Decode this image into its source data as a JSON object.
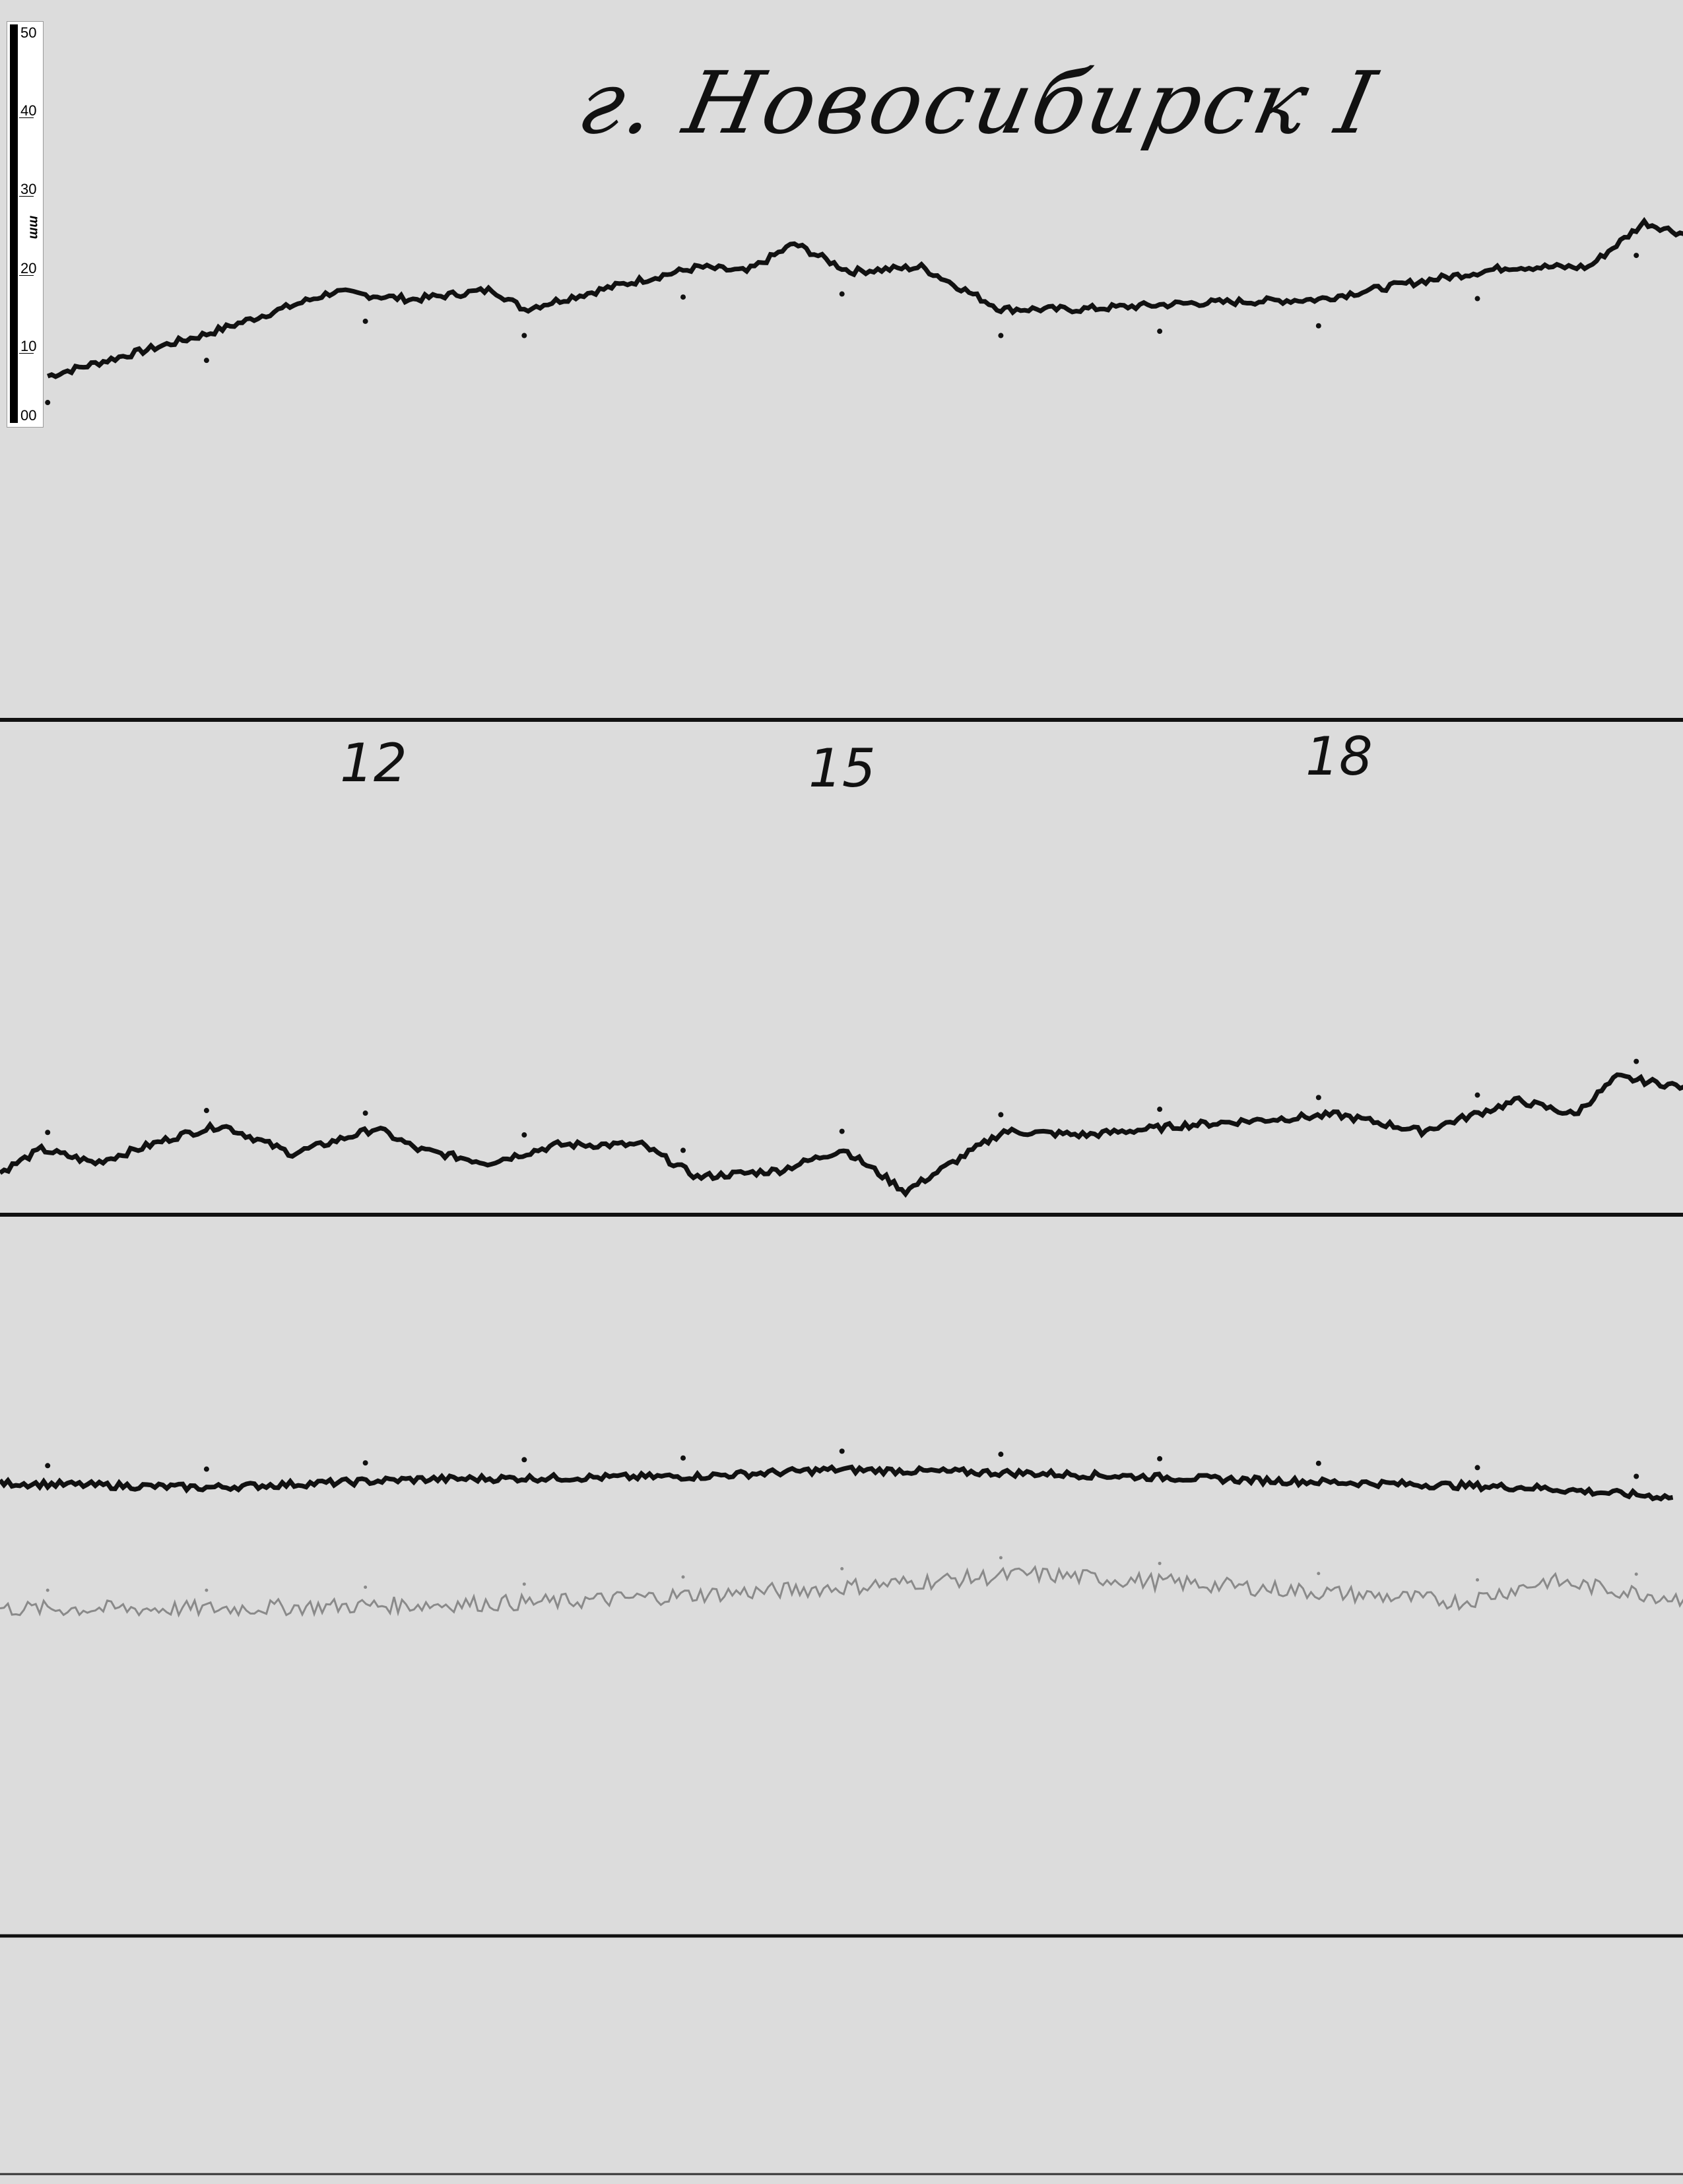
{
  "title": "г. Новосибирск I",
  "ruler": {
    "unit": "mm",
    "labels": [
      "50",
      "40",
      "30",
      "20",
      "10",
      "00"
    ]
  },
  "hour_labels": [
    "12",
    "15",
    "18"
  ],
  "colors": {
    "paper": "#dcdcdc",
    "trace": "#111111",
    "faint_trace": "#8a8a8a",
    "baseline": "#111111"
  },
  "chart_data": {
    "type": "line",
    "title": "г. Новосибирск I",
    "xlabel": "",
    "ylabel": "",
    "x_ticks": [
      12,
      15,
      18
    ],
    "xlim": [
      9.7,
      20.3
    ],
    "grid": false,
    "series": [
      {
        "baseline": 1,
        "points": [
          [
            10.0,
            45.7
          ],
          [
            11.0,
            51.3
          ],
          [
            11.8,
            56.9
          ],
          [
            12.3,
            55.9
          ],
          [
            12.8,
            57.2
          ],
          [
            13.0,
            54.6
          ],
          [
            13.6,
            57.8
          ],
          [
            14.1,
            60.2
          ],
          [
            14.4,
            59.6
          ],
          [
            14.7,
            63.3
          ],
          [
            15.05,
            59.6
          ],
          [
            15.5,
            60.2
          ],
          [
            16.0,
            54.6
          ],
          [
            16.5,
            54.6
          ],
          [
            17.2,
            55.4
          ],
          [
            18.0,
            55.9
          ],
          [
            18.5,
            57.8
          ],
          [
            19.2,
            60.2
          ],
          [
            19.7,
            60.2
          ],
          [
            20.05,
            66.1
          ],
          [
            20.3,
            64.6
          ]
        ]
      },
      {
        "baseline": 2,
        "points": [
          [
            9.7,
            5.6
          ],
          [
            9.96,
            8.7
          ],
          [
            10.3,
            6.9
          ],
          [
            10.84,
            10.6
          ],
          [
            11.1,
            11.9
          ],
          [
            11.54,
            8.1
          ],
          [
            12.07,
            11.5
          ],
          [
            12.33,
            8.7
          ],
          [
            12.77,
            6.9
          ],
          [
            13.21,
            9.3
          ],
          [
            13.74,
            9.3
          ],
          [
            14.09,
            5.0
          ],
          [
            14.61,
            5.9
          ],
          [
            15.01,
            8.7
          ],
          [
            15.4,
            3.1
          ],
          [
            16.02,
            11.1
          ],
          [
            16.54,
            10.6
          ],
          [
            17.16,
            11.9
          ],
          [
            18.12,
            13.3
          ],
          [
            18.65,
            11.1
          ],
          [
            19.26,
            15.2
          ],
          [
            19.61,
            13.3
          ],
          [
            19.88,
            18.3
          ],
          [
            20.3,
            17.0
          ]
        ]
      },
      {
        "baseline": 3,
        "points": [
          [
            9.7,
            60.2
          ],
          [
            11.0,
            59.6
          ],
          [
            12.33,
            60.7
          ],
          [
            14.09,
            61.1
          ],
          [
            14.96,
            62.0
          ],
          [
            16.19,
            61.5
          ],
          [
            17.6,
            60.6
          ],
          [
            19.35,
            59.6
          ],
          [
            20.23,
            58.3
          ]
        ]
      },
      {
        "baseline": 3,
        "faint": true,
        "points": [
          [
            9.7,
            43.5
          ],
          [
            11.0,
            43.5
          ],
          [
            13.21,
            44.4
          ],
          [
            14.96,
            46.3
          ],
          [
            16.19,
            48.1
          ],
          [
            17.6,
            46.3
          ],
          [
            18.91,
            44.4
          ],
          [
            19.44,
            47.2
          ],
          [
            20.3,
            44.8
          ]
        ]
      }
    ]
  }
}
